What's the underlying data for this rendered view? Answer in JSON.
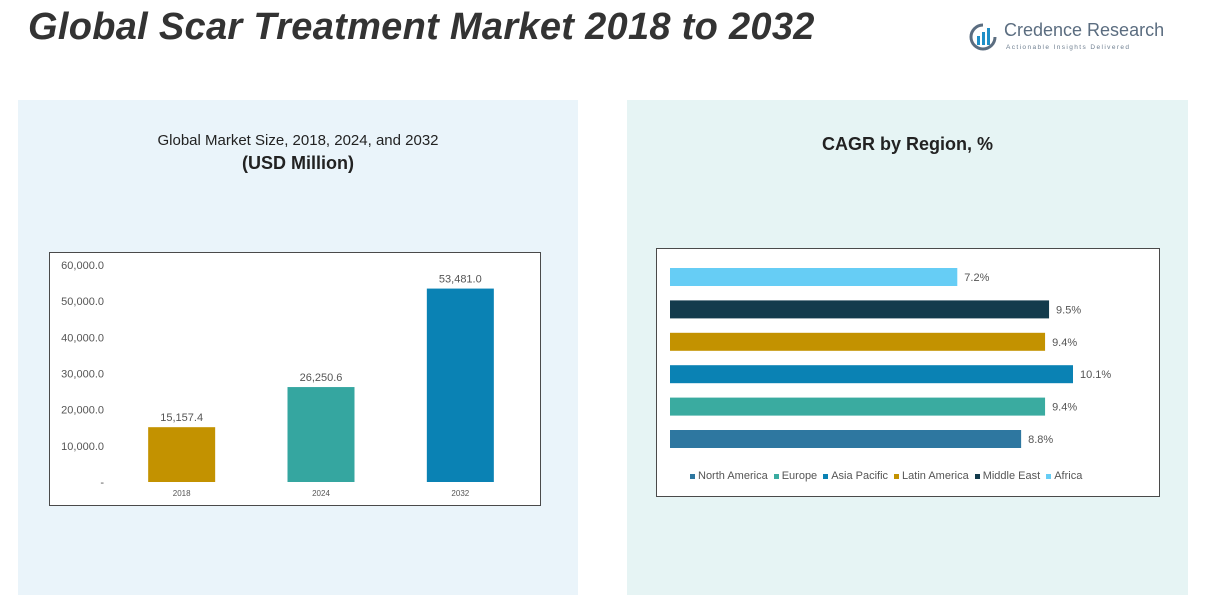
{
  "page": {
    "title": "Global Scar Treatment Market 2018 to 2032"
  },
  "brand": {
    "name": "Credence Research",
    "tagline": "Actionable Insights Delivered"
  },
  "chart_data": [
    {
      "type": "bar",
      "title": "Global Market Size, 2018, 2024, and 2032",
      "subtitle": "(USD Million)",
      "categories": [
        "2018",
        "2024",
        "2032"
      ],
      "values": [
        15157.4,
        26250.6,
        53481.0
      ],
      "value_labels": [
        "15,157.4",
        "26,250.6",
        "53,481.0"
      ],
      "colors": [
        "#c39200",
        "#35a6a0",
        "#0a82b4"
      ],
      "ylim": [
        0,
        60000
      ],
      "yticks": [
        0,
        10000,
        20000,
        30000,
        40000,
        50000,
        60000
      ],
      "ytick_labels": [
        "-",
        "10,000.0",
        "20,000.0",
        "30,000.0",
        "40,000.0",
        "50,000.0",
        "60,000.0"
      ],
      "grid": false,
      "legend": "none"
    },
    {
      "type": "bar",
      "orientation": "horizontal",
      "title": "CAGR by Region, %",
      "categories": [
        "North America",
        "Europe",
        "Asia Pacific",
        "Latin America",
        "Middle East",
        "Africa"
      ],
      "values": [
        8.8,
        9.4,
        10.1,
        9.4,
        9.5,
        7.2
      ],
      "value_labels": [
        "8.8%",
        "9.4%",
        "10.1%",
        "9.4%",
        "9.5%",
        "7.2%"
      ],
      "colors": [
        "#2e77a0",
        "#3aaba0",
        "#0a82b4",
        "#c39200",
        "#133b4c",
        "#66cdf5"
      ],
      "xlim": [
        0,
        10.1
      ],
      "grid": false,
      "legend": "bottom"
    }
  ]
}
